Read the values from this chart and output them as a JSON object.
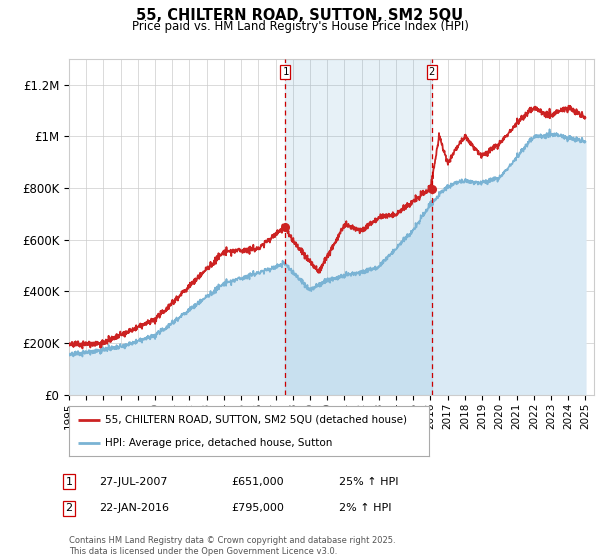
{
  "title": "55, CHILTERN ROAD, SUTTON, SM2 5QU",
  "subtitle": "Price paid vs. HM Land Registry's House Price Index (HPI)",
  "ylabel_ticks": [
    "£0",
    "£200K",
    "£400K",
    "£600K",
    "£800K",
    "£1M",
    "£1.2M"
  ],
  "ytick_vals": [
    0,
    200000,
    400000,
    600000,
    800000,
    1000000,
    1200000
  ],
  "ylim": [
    0,
    1300000
  ],
  "xlim_start": 1995.0,
  "xlim_end": 2025.5,
  "hpi_color": "#7ab3d4",
  "hpi_fill_color": "#daeaf5",
  "sale_color": "#cc2222",
  "background_color": "#ffffff",
  "grid_color": "#cccccc",
  "vline_color": "#cc0000",
  "marker_color": "#cc2222",
  "transaction1_date_x": 2007.57,
  "transaction1_price": 651000,
  "transaction2_date_x": 2016.06,
  "transaction2_price": 795000,
  "legend_line1": "55, CHILTERN ROAD, SUTTON, SM2 5QU (detached house)",
  "legend_line2": "HPI: Average price, detached house, Sutton",
  "footnote": "Contains HM Land Registry data © Crown copyright and database right 2025.\nThis data is licensed under the Open Government Licence v3.0.",
  "xtick_years": [
    1995,
    1996,
    1997,
    1998,
    1999,
    2000,
    2001,
    2002,
    2003,
    2004,
    2005,
    2006,
    2007,
    2008,
    2009,
    2010,
    2011,
    2012,
    2013,
    2014,
    2015,
    2016,
    2017,
    2018,
    2019,
    2020,
    2021,
    2022,
    2023,
    2024,
    2025
  ]
}
